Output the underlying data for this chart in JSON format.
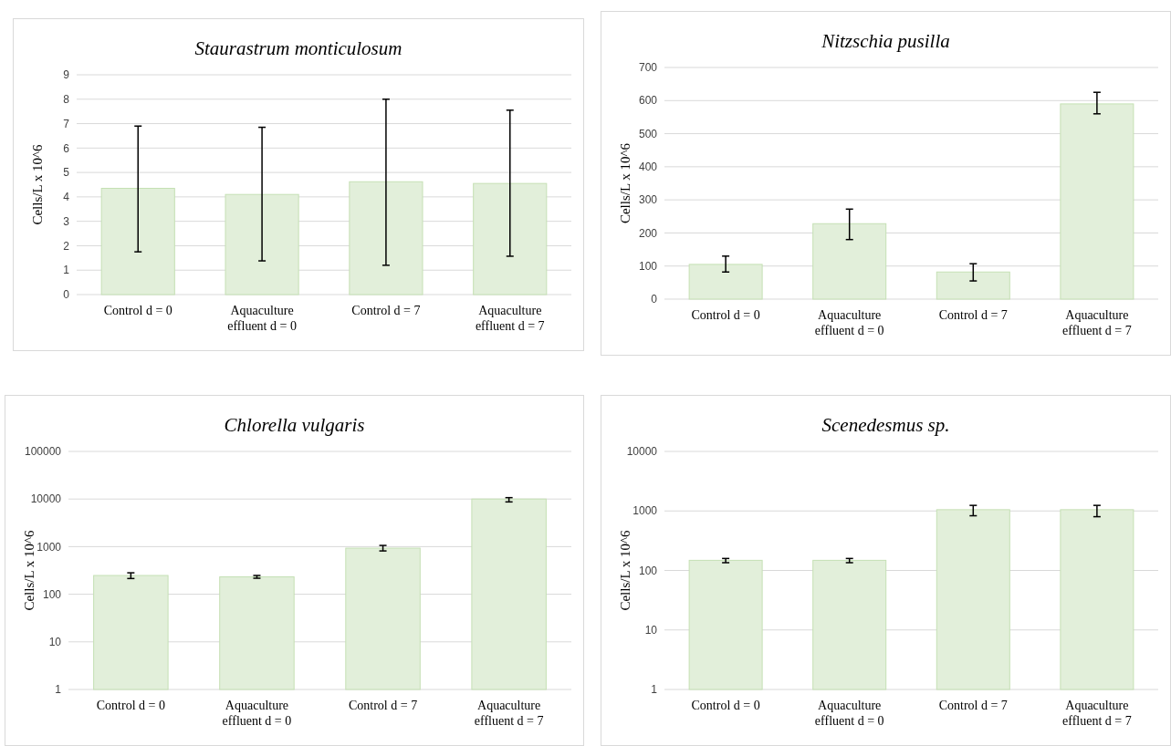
{
  "chart_data": [
    {
      "type": "bar",
      "title": "Staurastrum monticulosum",
      "ylabel": "Cells/L x 10^6",
      "categories": [
        "Control d = 0",
        "Aquaculture effluent d = 0",
        "Control d = 7",
        "Aquaculture effluent d = 7"
      ],
      "values": [
        4.35,
        4.1,
        4.62,
        4.55
      ],
      "errors": [
        [
          1.75,
          6.9
        ],
        [
          1.38,
          6.85
        ],
        [
          1.2,
          8.0
        ],
        [
          1.57,
          7.55
        ]
      ],
      "color": "#e2efda",
      "ylim": [
        0,
        9
      ],
      "yticks": [
        0,
        1,
        2,
        3,
        4,
        5,
        6,
        7,
        8,
        9
      ],
      "grid": "y"
    },
    {
      "type": "bar",
      "title": "Nitzschia pusilla",
      "ylabel": "Cells/L x 10^6",
      "categories": [
        "Control d = 0",
        "Aquaculture effluent d = 0",
        "Control d = 7",
        "Aquaculture effluent d = 7"
      ],
      "values": [
        105,
        228,
        82,
        590
      ],
      "errors": [
        [
          82,
          130
        ],
        [
          180,
          272
        ],
        [
          55,
          107
        ],
        [
          560,
          625
        ]
      ],
      "color": "#e2efda",
      "ylim": [
        0,
        700
      ],
      "yticks": [
        0,
        100,
        200,
        300,
        400,
        500,
        600,
        700
      ],
      "grid": "y"
    },
    {
      "type": "bar",
      "title": "Chlorella vulgaris",
      "ylabel": "Cells/L x 10^6",
      "categories": [
        "Control d = 0",
        "Aquaculture effluent d = 0",
        "Control d = 7",
        "Aquaculture effluent d = 7"
      ],
      "values": [
        248,
        232,
        930,
        10000
      ],
      "errors": [
        [
          214,
          282
        ],
        [
          217,
          248
        ],
        [
          813,
          1060
        ],
        [
          8700,
          10700
        ]
      ],
      "color": "#e2efda",
      "log": "y",
      "ylim": [
        1,
        100000
      ],
      "yticks": [
        1,
        10,
        100,
        1000,
        10000,
        100000
      ],
      "grid": "y"
    },
    {
      "type": "bar",
      "title": "Scenedesmus sp.",
      "ylabel": "Cells/L x 10^6",
      "categories": [
        "Control d = 0",
        "Aquaculture effluent d = 0",
        "Control d = 7",
        "Aquaculture effluent d = 7"
      ],
      "values": [
        148,
        148,
        1050,
        1050
      ],
      "errors": [
        [
          135,
          159
        ],
        [
          135,
          159
        ],
        [
          830,
          1240
        ],
        [
          800,
          1240
        ]
      ],
      "color": "#e2efda",
      "log": "y",
      "ylim": [
        1,
        10000
      ],
      "yticks": [
        1,
        10,
        100,
        1000,
        10000
      ],
      "grid": "y"
    }
  ]
}
